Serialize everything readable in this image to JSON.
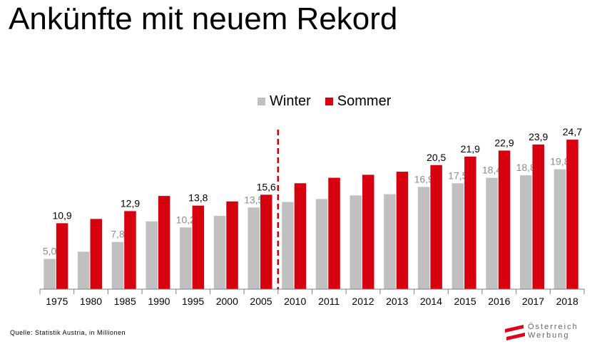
{
  "title": "Ankünfte mit neuem Rekord",
  "source": "Quelle:  Statistik Austria, in Millionen",
  "logo": {
    "line1": "Österreich",
    "line2": "Werbung",
    "flag_red": "#e2001a"
  },
  "colors": {
    "winter": "#c0c0c0",
    "sommer": "#d7000f",
    "winter_label": "#8c8c8c",
    "sommer_label": "#000000",
    "divider": "#c00000"
  },
  "chart_data": {
    "type": "bar",
    "categories": [
      "1975",
      "1980",
      "1985",
      "1990",
      "1995",
      "2000",
      "2005",
      "2010",
      "2011",
      "2012",
      "2013",
      "2014",
      "2015",
      "2016",
      "2017",
      "2018"
    ],
    "series": [
      {
        "name": "Winter",
        "values": [
          5.0,
          6.2,
          7.8,
          11.2,
          10.2,
          12.1,
          13.5,
          14.4,
          14.9,
          15.5,
          15.7,
          16.9,
          17.5,
          18.4,
          18.8,
          19.8
        ],
        "labels": [
          "5,0",
          "",
          "7,8",
          "",
          "10,2",
          "",
          "13,5",
          "",
          "",
          "",
          "",
          "16,9",
          "17,5",
          "18,4",
          "18,8",
          "19,8"
        ]
      },
      {
        "name": "Sommer",
        "values": [
          10.9,
          11.6,
          12.9,
          15.4,
          13.8,
          14.5,
          15.6,
          17.5,
          18.4,
          18.9,
          19.4,
          20.5,
          21.9,
          22.9,
          23.9,
          24.7
        ],
        "labels": [
          "10,9",
          "",
          "12,9",
          "",
          "13,8",
          "",
          "15,6",
          "",
          "",
          "",
          "",
          "20,5",
          "21,9",
          "22,9",
          "23,9",
          "24,7"
        ]
      }
    ],
    "ylim": [
      0,
      28
    ],
    "divider_after": "2005",
    "legend_position": "top-center",
    "grid": false
  }
}
